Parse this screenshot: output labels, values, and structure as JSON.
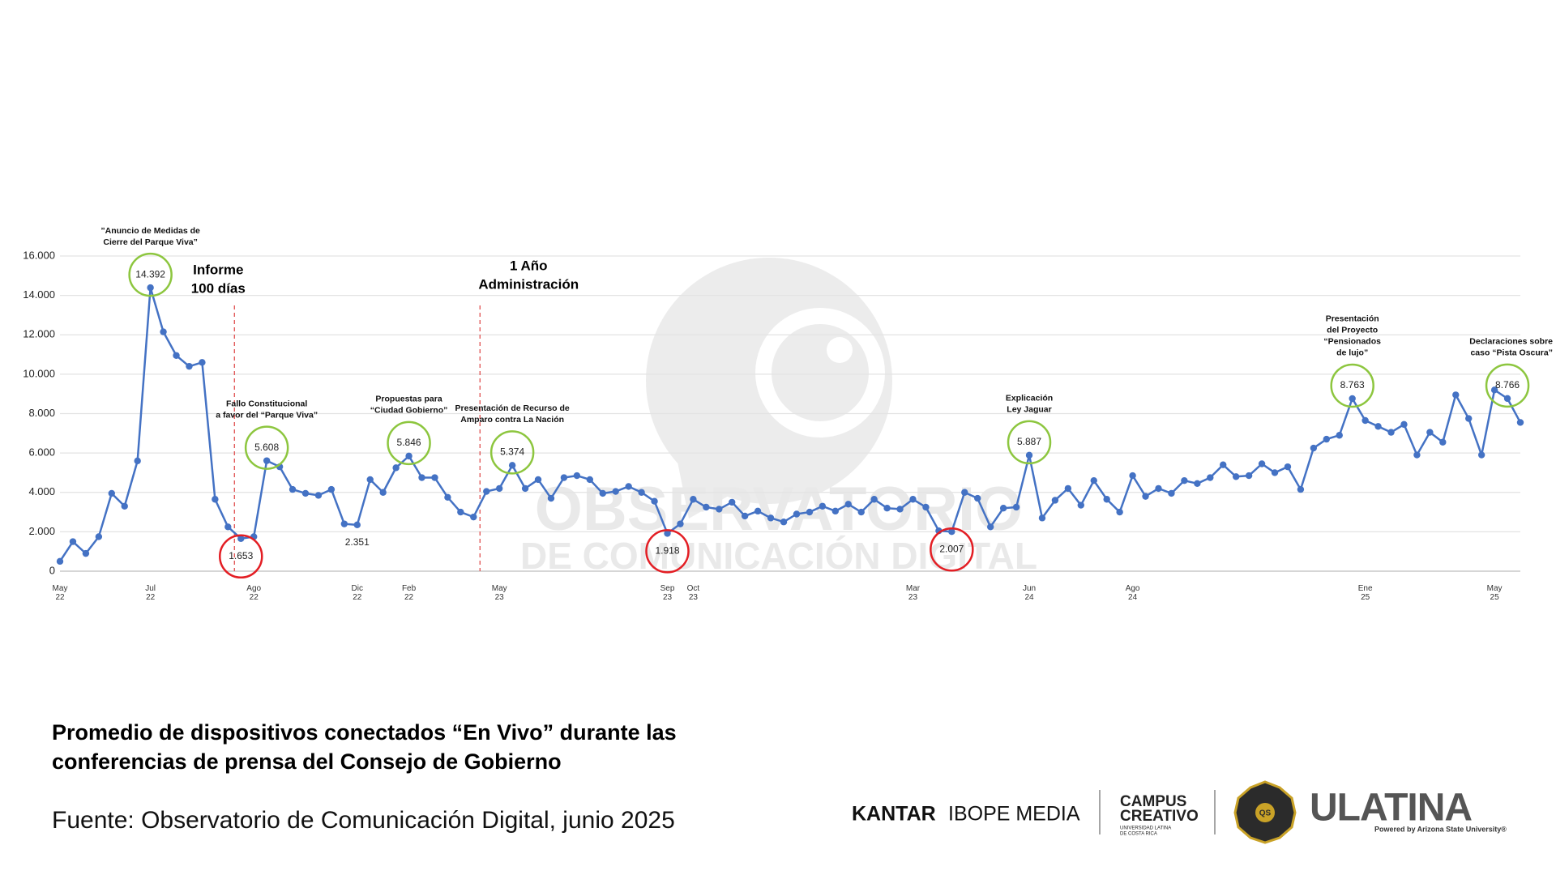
{
  "chart_data": {
    "type": "line",
    "color": "#4472c4",
    "categories": [
      "May 22",
      null,
      null,
      null,
      null,
      null,
      null,
      "Jul 22",
      null,
      null,
      null,
      null,
      null,
      null,
      null,
      "Ago 22",
      null,
      null,
      null,
      null,
      null,
      null,
      null,
      "Dic 22",
      null,
      null,
      null,
      "Feb 22",
      null,
      null,
      null,
      null,
      null,
      null,
      "May 23",
      null,
      null,
      null,
      null,
      null,
      null,
      null,
      null,
      null,
      null,
      null,
      null,
      "Sep 23",
      null,
      "Oct 23",
      null,
      null,
      null,
      null,
      null,
      null,
      null,
      null,
      null,
      null,
      null,
      null,
      null,
      null,
      null,
      null,
      "Mar 23",
      null,
      null,
      null,
      null,
      null,
      null,
      null,
      null,
      "Jun 24",
      null,
      null,
      null,
      null,
      null,
      null,
      null,
      "Ago 24",
      null,
      null,
      null,
      null,
      null,
      null,
      null,
      null,
      null,
      null,
      null,
      null,
      null,
      null,
      null,
      null,
      null,
      "Ene 25",
      null,
      null,
      null,
      null,
      null,
      null,
      null,
      null,
      null,
      "May 25",
      null,
      null
    ],
    "values": [
      500,
      1500,
      900,
      1750,
      3950,
      3300,
      5600,
      14392,
      12150,
      10950,
      10400,
      10600,
      3650,
      2250,
      1653,
      1750,
      5608,
      5300,
      4150,
      3950,
      3850,
      4150,
      2400,
      2351,
      4650,
      4000,
      5250,
      5846,
      4750,
      4750,
      3750,
      3000,
      2750,
      4050,
      4200,
      5374,
      4200,
      4650,
      3700,
      4750,
      4850,
      4650,
      3950,
      4050,
      4300,
      4000,
      3550,
      1918,
      2400,
      3650,
      3250,
      3150,
      3500,
      2800,
      3050,
      2700,
      2500,
      2900,
      3000,
      3300,
      3050,
      3400,
      3000,
      3650,
      3200,
      3150,
      3650,
      3250,
      2050,
      2007,
      4000,
      3700,
      2250,
      3200,
      3250,
      5887,
      2700,
      3600,
      4200,
      3350,
      4600,
      3650,
      3000,
      4850,
      3800,
      4200,
      3950,
      4600,
      4450,
      4750,
      5400,
      4800,
      4850,
      5450,
      5000,
      5300,
      4150,
      6250,
      6700,
      6900,
      8763,
      7650,
      7350,
      7050,
      7450,
      5900,
      7050,
      6550,
      8950,
      7750,
      5900,
      9200,
      8766,
      7550
    ],
    "value_labels": [
      null,
      null,
      null,
      null,
      null,
      null,
      null,
      "14.392",
      null,
      null,
      null,
      null,
      null,
      null,
      "1.653",
      null,
      "5.608",
      null,
      null,
      null,
      null,
      null,
      null,
      "2.351",
      null,
      null,
      null,
      "5.846",
      null,
      null,
      null,
      null,
      null,
      null,
      null,
      "5.374",
      null,
      null,
      null,
      null,
      null,
      null,
      null,
      null,
      null,
      null,
      null,
      "1.918",
      null,
      null,
      null,
      null,
      null,
      null,
      null,
      null,
      null,
      null,
      null,
      null,
      null,
      null,
      null,
      null,
      null,
      null,
      null,
      null,
      null,
      "2.007",
      null,
      null,
      null,
      null,
      null,
      "5.887",
      null,
      null,
      null,
      null,
      null,
      null,
      null,
      null,
      null,
      null,
      null,
      null,
      null,
      null,
      null,
      null,
      null,
      null,
      null,
      null,
      null,
      null,
      null,
      null,
      "8.763",
      null,
      null,
      null,
      null,
      null,
      null,
      null,
      null,
      null,
      null,
      null,
      "8.766",
      null
    ],
    "ylim": [
      0,
      16000
    ],
    "yticks": [
      0,
      {
        "value": 2000,
        "label": "2.000"
      },
      {
        "value": 4000,
        "label": "4.000"
      },
      {
        "value": 6000,
        "label": "6.000"
      },
      {
        "value": 8000,
        "label": "8.000"
      },
      {
        "value": 10000,
        "label": "10.000"
      },
      {
        "value": 12000,
        "label": "12.000"
      },
      {
        "value": 14000,
        "label": "14.000"
      },
      {
        "value": 16000,
        "label": "16.000"
      }
    ],
    "grid": true,
    "highlights": [
      {
        "index": 7,
        "color": "#8dc63f"
      },
      {
        "index": 16,
        "color": "#8dc63f"
      },
      {
        "index": 27,
        "color": "#8dc63f"
      },
      {
        "index": 35,
        "color": "#8dc63f"
      },
      {
        "index": 75,
        "color": "#8dc63f"
      },
      {
        "index": 100,
        "color": "#8dc63f"
      },
      {
        "index": 112,
        "color": "#8dc63f"
      },
      {
        "index": 14,
        "color": "#e31e24"
      },
      {
        "index": 47,
        "color": "#e31e24"
      },
      {
        "index": 69,
        "color": "#e31e24"
      }
    ],
    "annotations": [
      {
        "index": 7,
        "lines": [
          "”Anuncio de Medidas de",
          "Cierre del Parque Viva”"
        ]
      },
      {
        "index": 16,
        "lines": [
          "Fallo Constitucional",
          "a favor del “Parque Viva”"
        ]
      },
      {
        "index": 27,
        "lines": [
          "Propuestas  para",
          "“Ciudad Gobierno”"
        ]
      },
      {
        "index": 35,
        "lines": [
          "Presentación de Recurso de",
          "Amparo contra La Nación"
        ]
      },
      {
        "index": 75,
        "lines": [
          "Explicación",
          "Ley Jaguar"
        ]
      },
      {
        "index": 100,
        "lines": [
          "Presentación",
          "del Proyecto",
          "“Pensionados",
          "de lujo”"
        ]
      },
      {
        "index": 112,
        "lines": [
          "Declaraciones sobre",
          "caso “Pista Oscura”"
        ]
      }
    ],
    "markers": [
      {
        "after": 13,
        "lines": [
          "Informe",
          "100 días"
        ]
      },
      {
        "after": 32,
        "lines": [
          "1 Año",
          "Administración"
        ]
      }
    ]
  },
  "watermark": [
    "OBSERVATORIO",
    "DE COMUNICACIÓN DIGITAL"
  ],
  "footer": {
    "title": [
      "Promedio de dispositivos conectados “En Vivo” durante las",
      "conferencias de prensa del Consejo de Gobierno"
    ],
    "source": "Fuente: Observatorio de Comunicación Digital, junio 2025",
    "kantar": "KANTAR",
    "ibope": "IBOPE MEDIA",
    "campus": [
      "CAMPUS",
      "CREATIVO"
    ],
    "campus_sub": [
      "UNIVERSIDAD LATINA",
      "DE COSTA RICA"
    ],
    "badge": "QS",
    "ulatina": "ULATINA",
    "ulatina_sub": "Powered by Arizona State University®"
  }
}
